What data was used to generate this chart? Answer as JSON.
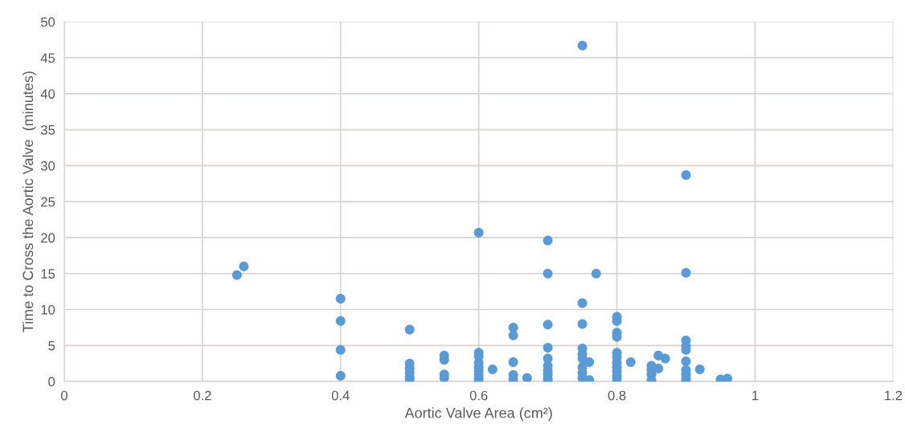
{
  "chart_data": {
    "type": "scatter",
    "xlabel": "Aortic Valve Area (cm²)",
    "ylabel": "Time to Cross the Aortic Valve  (minutes)",
    "xlim": [
      0,
      1.2
    ],
    "ylim": [
      0,
      50
    ],
    "xticks": [
      0,
      0.2,
      0.4,
      0.6,
      0.8,
      1,
      1.2
    ],
    "yticks": [
      0,
      5,
      10,
      15,
      20,
      25,
      30,
      35,
      40,
      45,
      50
    ],
    "grid": true,
    "marker": "circle",
    "series": [
      {
        "color": "#5b9bd5",
        "x": [
          0.25,
          0.26,
          0.4,
          0.4,
          0.4,
          0.4,
          0.5,
          0.5,
          0.5,
          0.5,
          0.5,
          0.5,
          0.55,
          0.55,
          0.55,
          0.55,
          0.6,
          0.6,
          0.6,
          0.6,
          0.6,
          0.6,
          0.6,
          0.6,
          0.6,
          0.62,
          0.65,
          0.65,
          0.65,
          0.65,
          0.65,
          0.67,
          0.7,
          0.7,
          0.7,
          0.7,
          0.7,
          0.7,
          0.7,
          0.7,
          0.7,
          0.7,
          0.75,
          0.75,
          0.75,
          0.75,
          0.75,
          0.75,
          0.75,
          0.75,
          0.75,
          0.76,
          0.76,
          0.77,
          0.8,
          0.8,
          0.8,
          0.8,
          0.8,
          0.8,
          0.8,
          0.8,
          0.8,
          0.8,
          0.8,
          0.82,
          0.85,
          0.85,
          0.85,
          0.85,
          0.86,
          0.86,
          0.87,
          0.9,
          0.9,
          0.9,
          0.9,
          0.9,
          0.9,
          0.9,
          0.9,
          0.9,
          0.9,
          0.92,
          0.95,
          0.96
        ],
        "values": [
          14.8,
          16,
          11.5,
          8.4,
          4.4,
          0.8,
          7.2,
          2.5,
          1.8,
          1.2,
          0.6,
          0.2,
          3.6,
          3.0,
          1.0,
          0.5,
          20.7,
          4.0,
          3.5,
          2.6,
          2.0,
          1.5,
          1.0,
          0.5,
          0.1,
          1.7,
          7.5,
          6.4,
          2.7,
          0.9,
          0.3,
          0.5,
          19.6,
          15,
          7.9,
          4.7,
          3.2,
          2.2,
          1.5,
          1.0,
          0.4,
          0.1,
          46.7,
          10.9,
          8.0,
          4.6,
          3.8,
          3.2,
          2.0,
          1.2,
          0.5,
          2.7,
          0.2,
          15,
          9.0,
          8.4,
          6.8,
          6.2,
          4.0,
          3.4,
          2.6,
          2.0,
          1.4,
          0.8,
          0.3,
          2.7,
          2.2,
          1.6,
          1.0,
          0.2,
          3.6,
          1.8,
          3.2,
          28.7,
          15.1,
          5.7,
          4.9,
          4.4,
          2.8,
          1.6,
          1.0,
          0.5,
          0.1,
          1.7,
          0.3,
          0.4
        ]
      }
    ]
  }
}
